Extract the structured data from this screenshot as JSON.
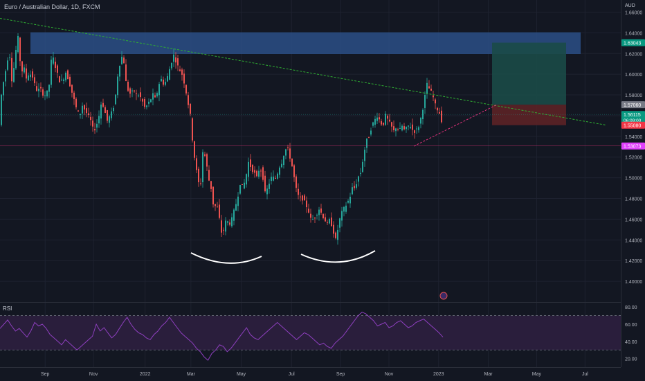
{
  "header": {
    "title": "Euro / Australian Dollar, 1D, FXCM",
    "currency": "AUD"
  },
  "rsi_panel": {
    "label": "RSI"
  },
  "colors": {
    "background": "#131722",
    "up": "#26a69a",
    "down": "#ef5350",
    "resistance_zone": "#2b4f86",
    "target_zone": "#1b4a47",
    "stop_zone": "#5c2226",
    "trendline": "#2fae32",
    "support_line": "#e0317a",
    "rsi_line": "#8e3fbf",
    "rsi_band": "#2a1e3c",
    "arc": "#ffffff",
    "grid": "#1e2230",
    "axis_text": "#b2b5be"
  },
  "chart_data": [
    {
      "type": "candlestick",
      "title": "Euro / Australian Dollar, 1D, FXCM",
      "ylabel": "AUD",
      "ylim": [
        1.38,
        1.665
      ],
      "yticks": [
        "1.66000",
        "1.64000",
        "1.62000",
        "1.60000",
        "1.58000",
        "1.56000",
        "1.54000",
        "1.52000",
        "1.50000",
        "1.48000",
        "1.46000",
        "1.44000",
        "1.42000",
        "1.40000"
      ],
      "xticks": [
        "Sep",
        "Nov",
        "2022",
        "Mar",
        "May",
        "Jul",
        "Sep",
        "Nov",
        "2023",
        "Mar",
        "May",
        "Jul"
      ],
      "price_series": [
        [
          0,
          1.575
        ],
        [
          2,
          1.585
        ],
        [
          6,
          1.6
        ],
        [
          9,
          1.61
        ],
        [
          12,
          1.625
        ],
        [
          16,
          1.595
        ],
        [
          20,
          1.61
        ],
        [
          23,
          1.63
        ],
        [
          25,
          1.635
        ],
        [
          26,
          1.64
        ],
        [
          27,
          1.62
        ],
        [
          30,
          1.6
        ],
        [
          33,
          1.61
        ],
        [
          36,
          1.595
        ],
        [
          40,
          1.6
        ],
        [
          44,
          1.6
        ],
        [
          48,
          1.595
        ],
        [
          50,
          1.585
        ],
        [
          54,
          1.585
        ],
        [
          58,
          1.585
        ],
        [
          62,
          1.58
        ],
        [
          66,
          1.58
        ],
        [
          70,
          1.59
        ],
        [
          74,
          1.62
        ],
        [
          78,
          1.61
        ],
        [
          82,
          1.6
        ],
        [
          86,
          1.592
        ],
        [
          90,
          1.595
        ],
        [
          94,
          1.602
        ],
        [
          98,
          1.595
        ],
        [
          102,
          1.585
        ],
        [
          106,
          1.575
        ],
        [
          110,
          1.565
        ],
        [
          114,
          1.56
        ],
        [
          118,
          1.57
        ],
        [
          122,
          1.565
        ],
        [
          126,
          1.56
        ],
        [
          130,
          1.555
        ],
        [
          134,
          1.545
        ],
        [
          138,
          1.55
        ],
        [
          142,
          1.56
        ],
        [
          146,
          1.575
        ],
        [
          150,
          1.565
        ],
        [
          154,
          1.555
        ],
        [
          158,
          1.56
        ],
        [
          162,
          1.565
        ],
        [
          166,
          1.58
        ],
        [
          170,
          1.605
        ],
        [
          174,
          1.615
        ],
        [
          177,
          1.62
        ],
        [
          180,
          1.595
        ],
        [
          184,
          1.585
        ],
        [
          188,
          1.58
        ],
        [
          192,
          1.585
        ],
        [
          196,
          1.58
        ],
        [
          200,
          1.58
        ],
        [
          204,
          1.575
        ],
        [
          208,
          1.568
        ],
        [
          212,
          1.57
        ],
        [
          216,
          1.575
        ],
        [
          220,
          1.58
        ],
        [
          224,
          1.575
        ],
        [
          228,
          1.59
        ],
        [
          232,
          1.595
        ],
        [
          236,
          1.59
        ],
        [
          240,
          1.595
        ],
        [
          244,
          1.605
        ],
        [
          248,
          1.615
        ],
        [
          251,
          1.62
        ],
        [
          254,
          1.61
        ],
        [
          258,
          1.605
        ],
        [
          262,
          1.6
        ],
        [
          266,
          1.59
        ],
        [
          270,
          1.575
        ],
        [
          274,
          1.56
        ],
        [
          278,
          1.53
        ],
        [
          282,
          1.51
        ],
        [
          286,
          1.495
        ],
        [
          288,
          1.48
        ],
        [
          290,
          1.51
        ],
        [
          292,
          1.525
        ],
        [
          296,
          1.52
        ],
        [
          300,
          1.5
        ],
        [
          304,
          1.49
        ],
        [
          306,
          1.48
        ],
        [
          308,
          1.47
        ],
        [
          312,
          1.475
        ],
        [
          316,
          1.46
        ],
        [
          318,
          1.45
        ],
        [
          320,
          1.445
        ],
        [
          322,
          1.45
        ],
        [
          326,
          1.46
        ],
        [
          330,
          1.455
        ],
        [
          334,
          1.46
        ],
        [
          338,
          1.47
        ],
        [
          342,
          1.48
        ],
        [
          346,
          1.495
        ],
        [
          350,
          1.49
        ],
        [
          354,
          1.5
        ],
        [
          358,
          1.515
        ],
        [
          362,
          1.51
        ],
        [
          366,
          1.505
        ],
        [
          370,
          1.5
        ],
        [
          374,
          1.51
        ],
        [
          378,
          1.505
        ],
        [
          380,
          1.495
        ],
        [
          382,
          1.485
        ],
        [
          386,
          1.49
        ],
        [
          390,
          1.5
        ],
        [
          394,
          1.5
        ],
        [
          398,
          1.5
        ],
        [
          402,
          1.51
        ],
        [
          406,
          1.515
        ],
        [
          410,
          1.525
        ],
        [
          414,
          1.53
        ],
        [
          418,
          1.52
        ],
        [
          420,
          1.515
        ],
        [
          424,
          1.5
        ],
        [
          428,
          1.485
        ],
        [
          432,
          1.48
        ],
        [
          436,
          1.48
        ],
        [
          440,
          1.475
        ],
        [
          444,
          1.47
        ],
        [
          448,
          1.46
        ],
        [
          452,
          1.46
        ],
        [
          456,
          1.465
        ],
        [
          460,
          1.47
        ],
        [
          464,
          1.465
        ],
        [
          468,
          1.46
        ],
        [
          472,
          1.455
        ],
        [
          476,
          1.46
        ],
        [
          480,
          1.45
        ],
        [
          484,
          1.44
        ],
        [
          486,
          1.445
        ],
        [
          488,
          1.455
        ],
        [
          492,
          1.465
        ],
        [
          496,
          1.47
        ],
        [
          500,
          1.475
        ],
        [
          504,
          1.48
        ],
        [
          508,
          1.49
        ],
        [
          512,
          1.49
        ],
        [
          516,
          1.5
        ],
        [
          520,
          1.505
        ],
        [
          524,
          1.52
        ],
        [
          528,
          1.535
        ],
        [
          532,
          1.54
        ],
        [
          536,
          1.55
        ],
        [
          540,
          1.555
        ],
        [
          544,
          1.56
        ],
        [
          548,
          1.555
        ],
        [
          552,
          1.55
        ],
        [
          556,
          1.56
        ],
        [
          560,
          1.555
        ],
        [
          564,
          1.55
        ],
        [
          568,
          1.545
        ],
        [
          572,
          1.55
        ],
        [
          576,
          1.545
        ],
        [
          580,
          1.55
        ],
        [
          584,
          1.545
        ],
        [
          588,
          1.55
        ],
        [
          592,
          1.55
        ],
        [
          596,
          1.545
        ],
        [
          600,
          1.545
        ],
        [
          604,
          1.55
        ],
        [
          608,
          1.56
        ],
        [
          612,
          1.575
        ],
        [
          616,
          1.59
        ],
        [
          620,
          1.585
        ],
        [
          624,
          1.58
        ],
        [
          628,
          1.57
        ],
        [
          632,
          1.565
        ],
        [
          636,
          1.56
        ],
        [
          638,
          1.551
        ]
      ],
      "resistance_zone": [
        1.6195,
        1.6405
      ],
      "trade_setup": {
        "entry": 1.5706,
        "target": 1.6305,
        "stop": 1.5508
      },
      "price_labels": [
        {
          "text": "1.63043",
          "value": 1.63043,
          "color": "#089981"
        },
        {
          "text": "1.57060",
          "value": 1.5706,
          "color": "#787b86"
        },
        {
          "text": "1.56115",
          "sub": "06:09:00",
          "value": 1.56115,
          "color": "#089981"
        },
        {
          "text": "1.55080",
          "value": 1.5508,
          "color": "#f23645"
        },
        {
          "text": "1.53073",
          "value": 1.53073,
          "color": "#e040fb"
        }
      ],
      "trendline": {
        "from": [
          0,
          1.654
        ],
        "to": [
          875,
          1.551
        ]
      },
      "support_line": {
        "value": 1.53073
      },
      "rising_line": {
        "from": [
          598,
          1.5305
        ],
        "to": [
          718,
          1.5706
        ]
      },
      "annotations": [
        "rounded bottom arc",
        "rounded bottom arc"
      ]
    },
    {
      "type": "line",
      "title": "RSI",
      "ylim": [
        10,
        85
      ],
      "yticks": [
        "80.00",
        "60.00",
        "40.00",
        "20.00"
      ],
      "bands": [
        70,
        30
      ],
      "values": [
        55,
        60,
        65,
        58,
        52,
        55,
        50,
        45,
        52,
        62,
        58,
        60,
        55,
        48,
        44,
        40,
        36,
        42,
        38,
        34,
        30,
        34,
        38,
        42,
        46,
        60,
        52,
        56,
        50,
        44,
        48,
        55,
        62,
        68,
        60,
        54,
        50,
        48,
        44,
        42,
        48,
        52,
        58,
        62,
        68,
        62,
        56,
        50,
        46,
        42,
        38,
        32,
        28,
        22,
        18,
        26,
        30,
        36,
        34,
        28,
        32,
        38,
        44,
        50,
        56,
        48,
        44,
        42,
        46,
        50,
        54,
        58,
        62,
        58,
        54,
        50,
        46,
        42,
        46,
        50,
        48,
        44,
        40,
        36,
        38,
        34,
        32,
        38,
        42,
        46,
        52,
        58,
        64,
        70,
        74,
        72,
        68,
        64,
        58,
        60,
        62,
        56,
        58,
        62,
        64,
        60,
        56,
        58,
        62,
        64,
        66,
        62,
        58,
        54,
        50,
        45
      ]
    }
  ]
}
